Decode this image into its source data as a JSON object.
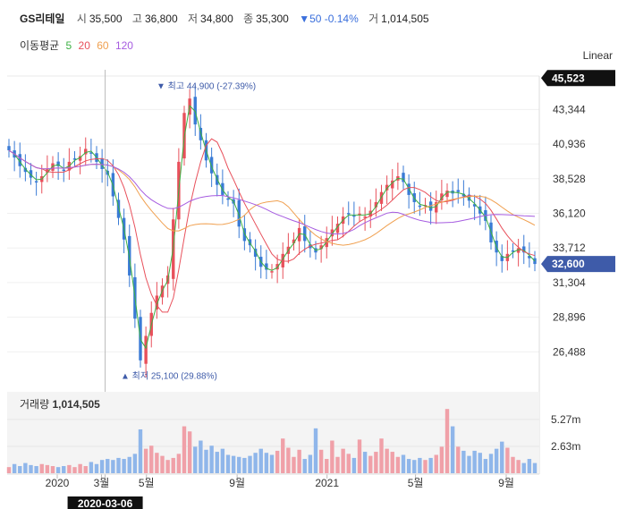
{
  "header": {
    "name": "GS리테일",
    "open_label": "시",
    "open": "35,500",
    "high_label": "고",
    "high": "36,800",
    "low_label": "저",
    "low": "34,800",
    "close_label": "종",
    "close": "35,300",
    "change": "▼50 -0.14%",
    "volume_label": "거",
    "volume": "1,014,505"
  },
  "moving_avg": {
    "label": "이동평균",
    "periods": [
      {
        "text": "5",
        "color": "#3cb043"
      },
      {
        "text": "20",
        "color": "#e8505b"
      },
      {
        "text": "60",
        "color": "#f0a050"
      },
      {
        "text": "120",
        "color": "#a65ce0"
      }
    ]
  },
  "scale_button": "Linear",
  "volume_panel": {
    "label": "거래량",
    "value": "1,014,505"
  },
  "chart_data": {
    "type": "candlestick",
    "y_ticks": [
      43344,
      40936,
      38528,
      36120,
      33712,
      31304,
      28896,
      26488
    ],
    "y_tick_labels": [
      "43,344",
      "40,936",
      "38,528",
      "36,120",
      "33,712",
      "31,304",
      "28,896",
      "26,488"
    ],
    "ylim": [
      23900,
      46100
    ],
    "x_tick_labels": [
      "2020",
      "3월",
      "5월",
      "9월",
      "2021",
      "5월",
      "9월"
    ],
    "x_tick_dates": [
      "2020-01-01",
      "2020-03-01",
      "2020-05-01",
      "2020-09-01",
      "2021-01-01",
      "2021-05-01",
      "2021-09-01"
    ],
    "max_marker": {
      "label": "최고",
      "value": "44,900",
      "change": "(-27.39%)",
      "price": 44900
    },
    "min_marker": {
      "label": "최저",
      "value": "25,100",
      "change": "(29.88%)",
      "price": 25100
    },
    "price_tags": [
      {
        "label": "45,523",
        "price": 45523,
        "color": "#111111"
      },
      {
        "label": "32,600",
        "price": 32600,
        "color": "#3e5ba9"
      }
    ],
    "crosshair_date": "2020-03-06",
    "volume_ticks": [
      "5.27m",
      "2.63m"
    ],
    "volume_tick_values": [
      5270000,
      2630000
    ],
    "up_color": "#e8505b",
    "down_color": "#3a7bd5",
    "closes": [
      40500,
      40000,
      39400,
      39000,
      38600,
      38300,
      38700,
      39200,
      39600,
      39400,
      39100,
      39700,
      39900,
      40100,
      40600,
      40300,
      39700,
      39200,
      38800,
      37300,
      35800,
      34300,
      31800,
      28800,
      25900,
      27600,
      29200,
      30400,
      31100,
      31800,
      35700,
      39700,
      43100,
      44100,
      42300,
      41200,
      39800,
      38900,
      38100,
      37400,
      37100,
      36800,
      35200,
      34200,
      33900,
      33100,
      32400,
      32200,
      32100,
      32600,
      33300,
      33800,
      34300,
      35100,
      34200,
      33700,
      33400,
      33900,
      34400,
      35000,
      35400,
      35900,
      36100,
      35900,
      36100,
      35900,
      36300,
      36900,
      37600,
      38100,
      38400,
      38700,
      38300,
      37400,
      36900,
      36600,
      36700,
      36300,
      36900,
      37500,
      37700,
      37500,
      37600,
      37300,
      37000,
      36600,
      36100,
      35600,
      34100,
      33400,
      32800,
      33300,
      33500,
      33700,
      33400,
      33000,
      32600
    ],
    "volume_values": [
      0.6,
      0.9,
      0.7,
      1.0,
      0.8,
      0.7,
      0.9,
      0.8,
      0.7,
      0.6,
      0.7,
      0.8,
      0.6,
      0.9,
      0.7,
      1.1,
      0.9,
      1.3,
      1.4,
      1.3,
      1.5,
      1.4,
      1.6,
      1.9,
      4.3,
      2.4,
      2.7,
      2.0,
      1.7,
      1.3,
      1.5,
      1.9,
      4.6,
      4.1,
      2.6,
      3.2,
      2.3,
      2.7,
      2.1,
      2.4,
      1.8,
      1.7,
      1.6,
      1.5,
      1.7,
      2.0,
      2.4,
      2.0,
      1.8,
      2.2,
      3.4,
      2.5,
      1.6,
      2.3,
      1.4,
      1.8,
      4.4,
      2.3,
      1.4,
      3.2,
      1.6,
      2.4,
      1.9,
      1.5,
      3.3,
      2.1,
      1.7,
      2.1,
      3.4,
      2.4,
      2.1,
      1.6,
      1.8,
      1.4,
      1.3,
      1.5,
      1.3,
      1.5,
      1.8,
      2.6,
      6.3,
      4.6,
      2.6,
      2.2,
      1.7,
      2.2,
      2.0,
      1.4,
      1.9,
      2.4,
      3.1,
      2.5,
      1.6,
      1.3,
      1.0,
      1.4,
      1.0
    ]
  }
}
